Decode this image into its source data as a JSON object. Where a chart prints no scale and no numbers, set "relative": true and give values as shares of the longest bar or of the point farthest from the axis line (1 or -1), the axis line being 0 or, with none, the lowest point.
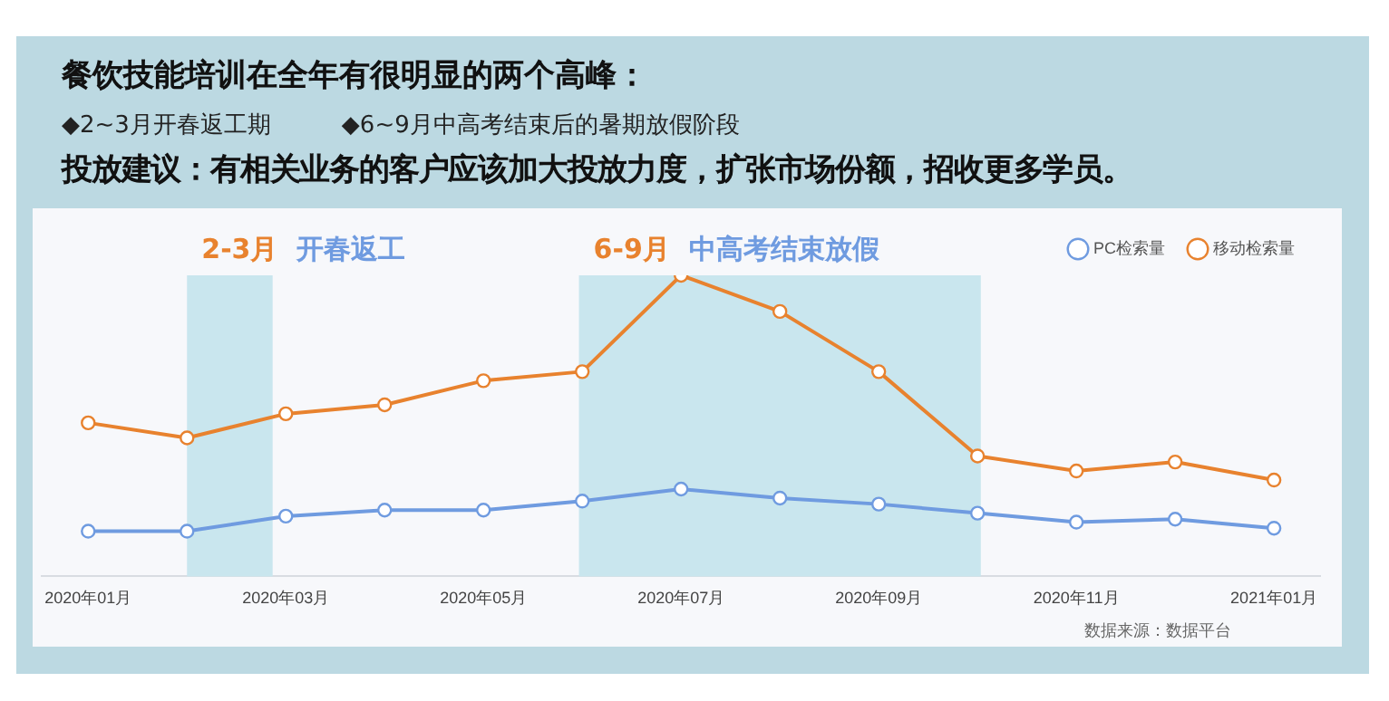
{
  "chart_data": {
    "type": "line",
    "title": "餐饮技能培训在全年有很明显的两个高峰：",
    "subtitle": "◆2~3月开春返工期　　　◆6~9月中高考结束后的暑期放假阶段",
    "annotations": [
      "投放建议：有相关业务的客户应该加大投放力度，扩张市场份额，招收更多学员。",
      "数据来源：数据平台"
    ],
    "x": [
      "2020-01",
      "2020-02",
      "2020-03",
      "2020-04",
      "2020-05",
      "2020-06",
      "2020-07",
      "2020-08",
      "2020-09",
      "2020-10",
      "2020-11",
      "2020-12",
      "2021-01"
    ],
    "xlim": [
      "2019-12-17",
      "2021-01-15"
    ],
    "xticks": [
      {
        "value": "2020-01",
        "label": "2020年01月"
      },
      {
        "value": "2020-03",
        "label": "2020年03月"
      },
      {
        "value": "2020-05",
        "label": "2020年05月"
      },
      {
        "value": "2020-07",
        "label": "2020年07月"
      },
      {
        "value": "2020-09",
        "label": "2020年09月"
      },
      {
        "value": "2020-11",
        "label": "2020年11月"
      },
      {
        "value": "2021-01",
        "label": "2021年01月"
      }
    ],
    "relative": true,
    "series": [
      {
        "name": "PC检索量",
        "color": "#6f9be0",
        "values": [
          0.15,
          0.15,
          0.2,
          0.22,
          0.22,
          0.25,
          0.29,
          0.26,
          0.24,
          0.21,
          0.18,
          0.19,
          0.16
        ]
      },
      {
        "name": "移动检索量",
        "color": "#e8822e",
        "values": [
          0.51,
          0.46,
          0.54,
          0.57,
          0.65,
          0.68,
          1,
          0.88,
          0.68,
          0.4,
          0.35,
          0.38,
          0.32
        ]
      }
    ],
    "bands": [
      {
        "axis": "x",
        "from": "2020-02",
        "to": "2020-02-27",
        "label": "2-3月 开春返工",
        "color": "#c9e6ee"
      },
      {
        "axis": "x",
        "from": "2020-05-30",
        "to": "2020-10-02",
        "label": "6-9月 中高考结束放假",
        "color": "#c9e6ee"
      }
    ],
    "legend": "top right",
    "marker": "circle",
    "line_style": "solid"
  }
}
